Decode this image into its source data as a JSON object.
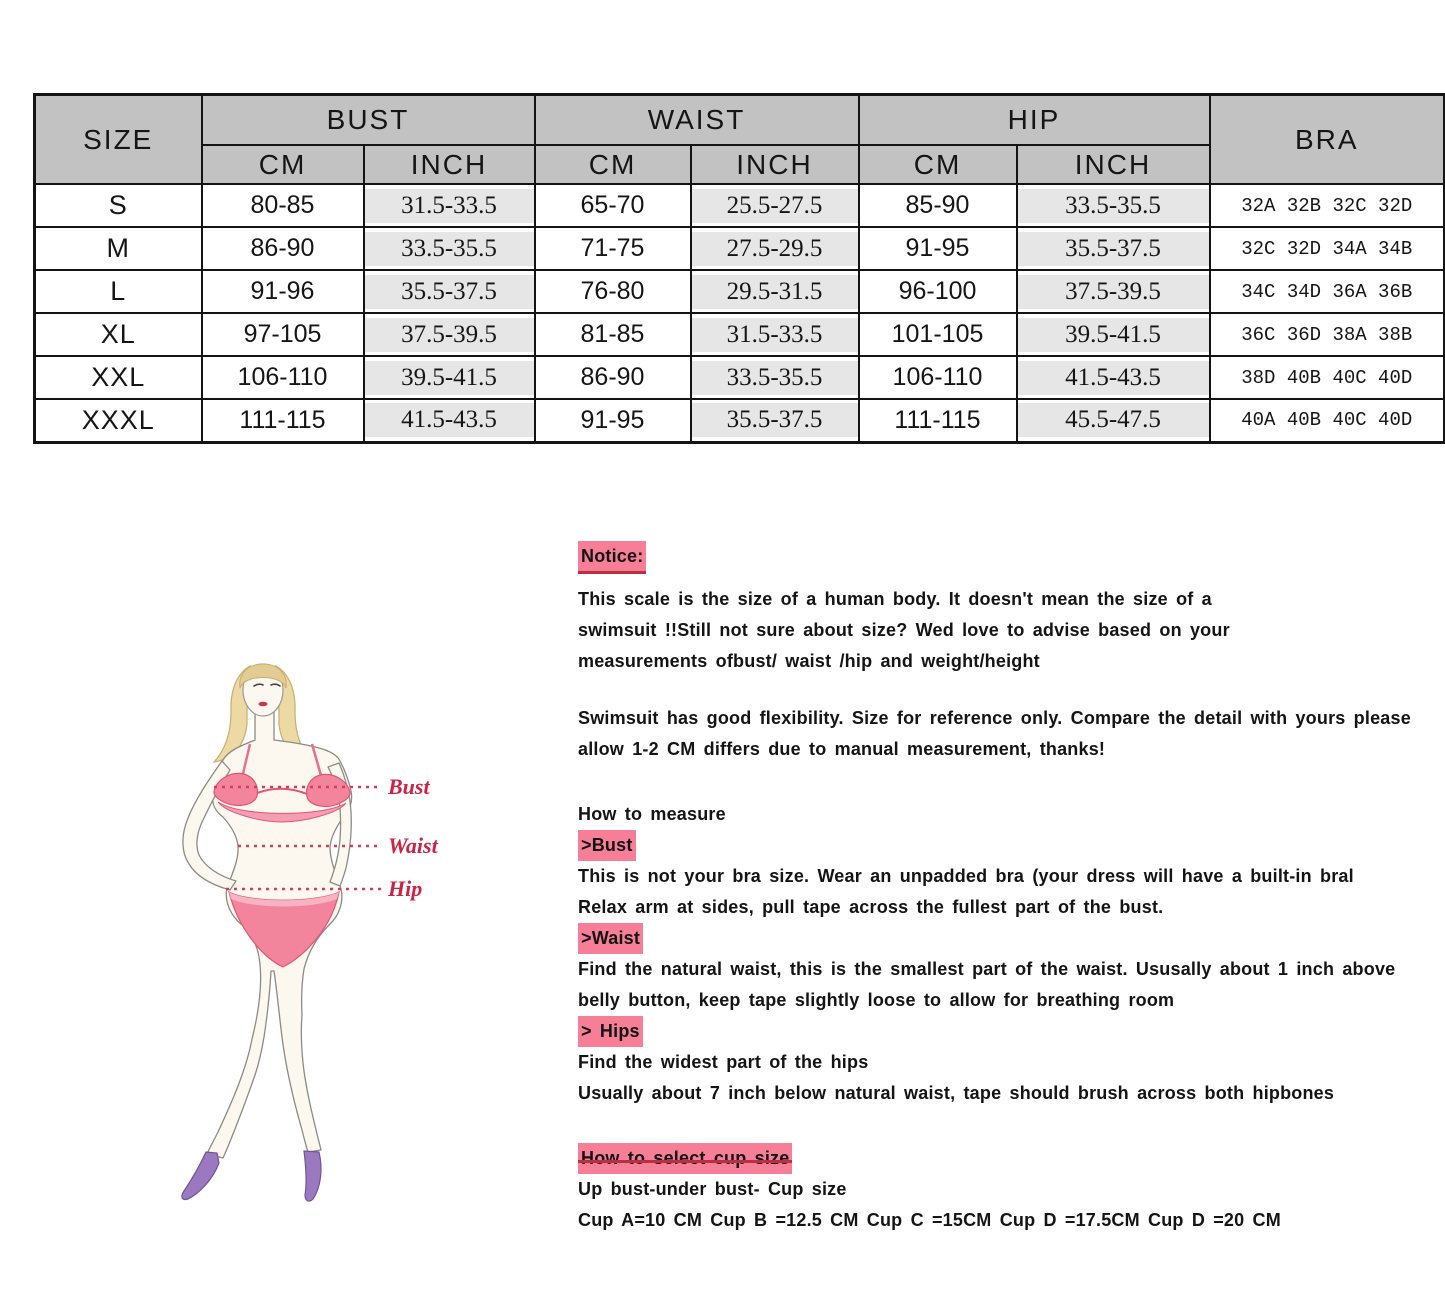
{
  "table": {
    "size_header": "SIZE",
    "bust_header": "BUST",
    "waist_header": "WAIST",
    "hip_header": "HIP",
    "bra_header": "BRA",
    "cm_header": "CM",
    "inch_header": "INCH",
    "rows": [
      {
        "size": "S",
        "bust_cm": "80-85",
        "bust_inch": "31.5-33.5",
        "waist_cm": "65-70",
        "waist_inch": "25.5-27.5",
        "hip_cm": "85-90",
        "hip_inch": "33.5-35.5",
        "bra": "32A 32B 32C 32D"
      },
      {
        "size": "M",
        "bust_cm": "86-90",
        "bust_inch": "33.5-35.5",
        "waist_cm": "71-75",
        "waist_inch": "27.5-29.5",
        "hip_cm": "91-95",
        "hip_inch": "35.5-37.5",
        "bra": "32C 32D 34A 34B"
      },
      {
        "size": "L",
        "bust_cm": "91-96",
        "bust_inch": "35.5-37.5",
        "waist_cm": "76-80",
        "waist_inch": "29.5-31.5",
        "hip_cm": "96-100",
        "hip_inch": "37.5-39.5",
        "bra": "34C 34D 36A 36B"
      },
      {
        "size": "XL",
        "bust_cm": "97-105",
        "bust_inch": "37.5-39.5",
        "waist_cm": "81-85",
        "waist_inch": "31.5-33.5",
        "hip_cm": "101-105",
        "hip_inch": "39.5-41.5",
        "bra": "36C 36D 38A 38B"
      },
      {
        "size": "XXL",
        "bust_cm": "106-110",
        "bust_inch": "39.5-41.5",
        "waist_cm": "86-90",
        "waist_inch": "33.5-35.5",
        "hip_cm": "106-110",
        "hip_inch": "41.5-43.5",
        "bra": "38D 40B 40C 40D"
      },
      {
        "size": "XXXL",
        "bust_cm": "111-115",
        "bust_inch": "41.5-43.5",
        "waist_cm": "91-95",
        "waist_inch": "35.5-37.5",
        "hip_cm": "111-115",
        "hip_inch": "45.5-47.5",
        "bra": "40A 40B 40C 40D"
      }
    ]
  },
  "figure": {
    "bust_label": "Bust",
    "waist_label": "Waist",
    "hip_label": "Hip"
  },
  "notice": {
    "heading": "Notice:",
    "intro_lines": [
      "This scale is the size of a human body. It doesn't mean the size of a",
      "swimsuit !!Still not sure about size? Wed love to advise based on your",
      "measurements ofbust/ waist /hip and weight/height"
    ],
    "flex_lines": [
      "Swimsuit has good flexibility. Size for reference only. Compare the detail with yours please",
      "allow 1-2 CM differs due to manual measurement, thanks!"
    ],
    "how_to_measure": "How to measure",
    "bust_heading": ">Bust",
    "bust_lines": [
      "This is not your bra size. Wear an unpadded bra (your dress will have a built-in bral",
      "Relax arm at sides, pull tape across the fullest part of the bust."
    ],
    "waist_heading": ">Waist",
    "waist_lines": [
      "Find the natural waist, this is the smallest part of the waist. Ususally about 1 inch above",
      "belly button, keep tape slightly loose to allow for breathing room"
    ],
    "hips_heading": "> Hips",
    "hips_lines": [
      "Find the widest part of the hips",
      "Usually about 7 inch below natural waist, tape should brush across both hipbones"
    ],
    "cup_heading": "How to select cup size",
    "cup_lines": [
      "Up bust-under bust- Cup size",
      "Cup A=10 CM Cup B =12.5 CM Cup C =15CM Cup D =17.5CM Cup D =20 CM"
    ]
  },
  "colors": {
    "highlight_pink": "#f67e96",
    "underline_red": "#bb2e44",
    "label_red": "#cf2143",
    "header_gray": "#c2c2c2",
    "inch_cell_gray": "#e6e6e6",
    "border_black": "#141414"
  }
}
